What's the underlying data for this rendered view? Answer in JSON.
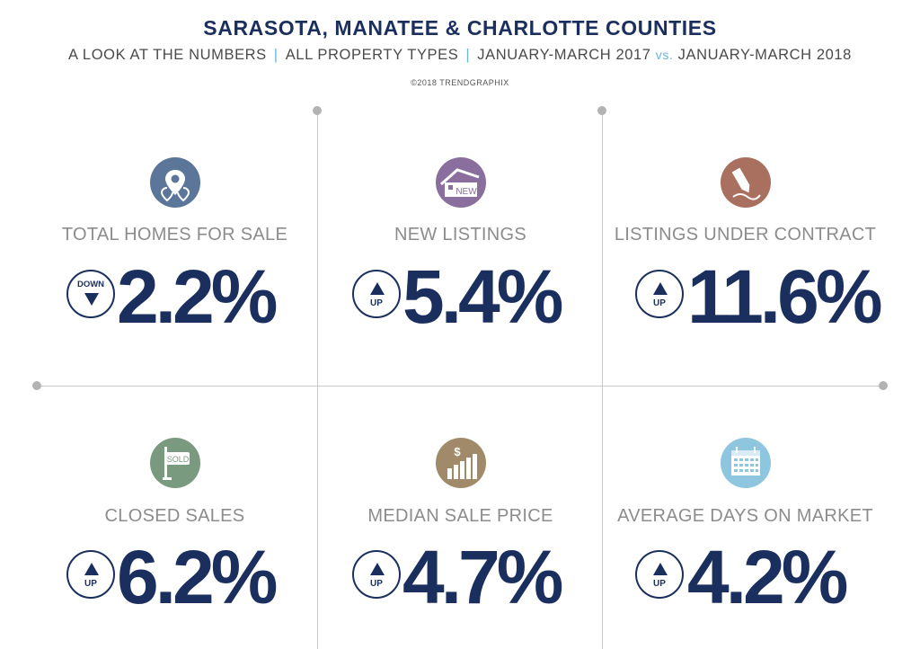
{
  "header": {
    "title": "SARASOTA, MANATEE & CHARLOTTE COUNTIES",
    "subtitle_part1": "A LOOK AT THE NUMBERS",
    "separator": "|",
    "subtitle_part2": "ALL PROPERTY TYPES",
    "subtitle_part3": "JANUARY-MARCH 2017",
    "vs": "vs.",
    "subtitle_part4": "JANUARY-MARCH 2018",
    "copyright": "©2018 TRENDGRAPHIX"
  },
  "colors": {
    "navy": "#1b2f5e",
    "label_gray": "#8c8c8c",
    "accent_blue": "#6bb5d8"
  },
  "metrics": [
    {
      "label": "TOTAL HOMES FOR SALE",
      "direction": "DOWN",
      "value": "2.2%",
      "icon": "map-pin-icon",
      "icon_color": "#5b7698"
    },
    {
      "label": "NEW LISTINGS",
      "direction": "UP",
      "value": "5.4%",
      "icon": "new-house-icon",
      "icon_color": "#8a6f9e",
      "icon_text": "NEW"
    },
    {
      "label": "LISTINGS UNDER CONTRACT",
      "direction": "UP",
      "value": "11.6%",
      "icon": "pen-signing-icon",
      "icon_color": "#a9705f"
    },
    {
      "label": "CLOSED SALES",
      "direction": "UP",
      "value": "6.2%",
      "icon": "sold-sign-icon",
      "icon_color": "#7a9a7f",
      "icon_text": "SOLD"
    },
    {
      "label": "MEDIAN SALE PRICE",
      "direction": "UP",
      "value": "4.7%",
      "icon": "price-bars-icon",
      "icon_color": "#a08a6a",
      "icon_text": "$"
    },
    {
      "label": "AVERAGE DAYS ON MARKET",
      "direction": "UP",
      "value": "4.2%",
      "icon": "calendar-icon",
      "icon_color": "#8ec6e0"
    }
  ]
}
